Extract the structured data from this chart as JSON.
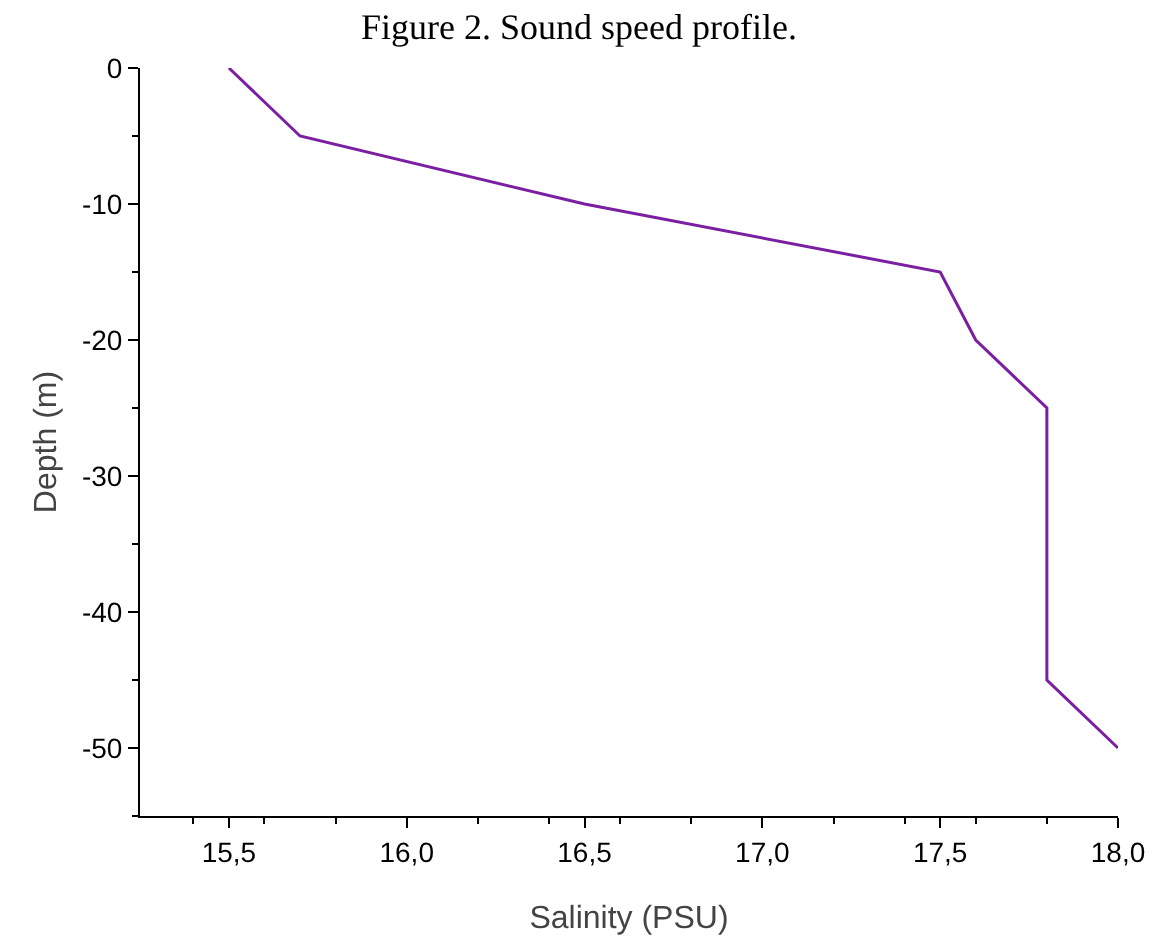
{
  "chart_data": {
    "type": "line",
    "title": "Figure 2. Sound speed profile.",
    "xlabel": "Salinity (PSU)",
    "ylabel": "Depth (m)",
    "x": [
      15.5,
      15.7,
      16.5,
      17.5,
      17.6,
      17.8,
      17.8,
      18.0
    ],
    "series": [
      {
        "color": "#7b1fa2",
        "values": [
          0,
          -5,
          -10,
          -15,
          -20,
          -25,
          -45,
          -50
        ]
      }
    ],
    "xlim": [
      15.25,
      18.0
    ],
    "ylim": [
      -55,
      0
    ],
    "xticks": [
      {
        "value": 15.5,
        "label": "15,5"
      },
      {
        "value": 16.0,
        "label": "16,0"
      },
      {
        "value": 16.5,
        "label": "16,5"
      },
      {
        "value": 17.0,
        "label": "17,0"
      },
      {
        "value": 17.5,
        "label": "17,5"
      },
      {
        "value": 18.0,
        "label": "18,0"
      }
    ],
    "yticks": [
      0,
      -10,
      -20,
      -30,
      -40,
      -50
    ],
    "grid": false,
    "legend": false,
    "marker": "none",
    "line_style": "solid"
  }
}
